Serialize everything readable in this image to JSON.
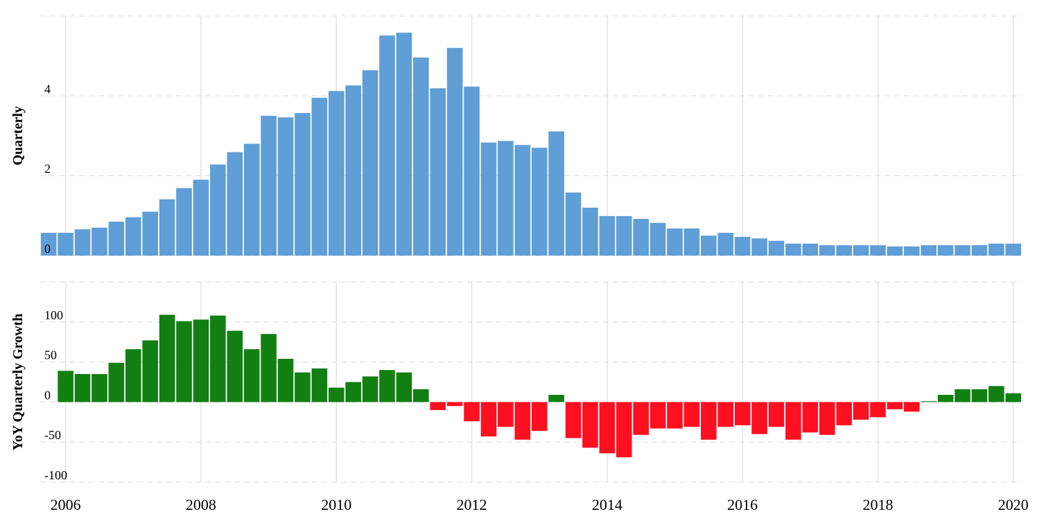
{
  "chart_data": [
    {
      "type": "bar",
      "ylabel": "Quarterly",
      "color": "#5f9ed6",
      "x": [
        2005.75,
        2006,
        2006.25,
        2006.5,
        2006.75,
        2007,
        2007.25,
        2007.5,
        2007.75,
        2008,
        2008.25,
        2008.5,
        2008.75,
        2009,
        2009.25,
        2009.5,
        2009.75,
        2010,
        2010.25,
        2010.5,
        2010.75,
        2011,
        2011.25,
        2011.5,
        2011.75,
        2012,
        2012.25,
        2012.5,
        2012.75,
        2013,
        2013.25,
        2013.5,
        2013.75,
        2014,
        2014.25,
        2014.5,
        2014.75,
        2015,
        2015.25,
        2015.5,
        2015.75,
        2016,
        2016.25,
        2016.5,
        2016.75,
        2017,
        2017.25,
        2017.5,
        2017.75,
        2018,
        2018.25,
        2018.5,
        2018.75,
        2019,
        2019.25,
        2019.5,
        2019.75,
        2020
      ],
      "values": [
        0.57,
        0.57,
        0.66,
        0.7,
        0.85,
        0.96,
        1.1,
        1.41,
        1.69,
        1.9,
        2.28,
        2.59,
        2.8,
        3.5,
        3.46,
        3.57,
        3.95,
        4.12,
        4.26,
        4.64,
        5.51,
        5.58,
        4.96,
        4.19,
        5.2,
        4.23,
        2.83,
        2.87,
        2.77,
        2.7,
        3.11,
        1.58,
        1.2,
        0.99,
        0.99,
        0.92,
        0.82,
        0.68,
        0.68,
        0.5,
        0.57,
        0.47,
        0.43,
        0.37,
        0.3,
        0.3,
        0.26,
        0.26,
        0.26,
        0.26,
        0.23,
        0.23,
        0.26,
        0.26,
        0.26,
        0.26,
        0.3,
        0.3
      ],
      "xlim": [
        2005.625,
        2020.125
      ],
      "ylim": [
        0,
        6
      ],
      "yticks": [
        0,
        2,
        4
      ],
      "grid": true
    },
    {
      "type": "bar",
      "ylabel": "YoY Quarterly Growth",
      "color": "#127f12",
      "negative_color": "#ff1020",
      "x": [
        2005.75,
        2006,
        2006.25,
        2006.5,
        2006.75,
        2007,
        2007.25,
        2007.5,
        2007.75,
        2008,
        2008.25,
        2008.5,
        2008.75,
        2009,
        2009.25,
        2009.5,
        2009.75,
        2010,
        2010.25,
        2010.5,
        2010.75,
        2011,
        2011.25,
        2011.5,
        2011.75,
        2012,
        2012.25,
        2012.5,
        2012.75,
        2013,
        2013.25,
        2013.5,
        2013.75,
        2014,
        2014.25,
        2014.5,
        2014.75,
        2015,
        2015.25,
        2015.5,
        2015.75,
        2016,
        2016.25,
        2016.5,
        2016.75,
        2017,
        2017.25,
        2017.5,
        2017.75,
        2018,
        2018.25,
        2018.5,
        2018.75,
        2019,
        2019.25,
        2019.5,
        2019.75,
        2020
      ],
      "values": [
        null,
        39,
        35,
        35,
        49,
        66,
        77,
        109,
        101,
        103,
        108,
        89,
        66,
        85,
        54,
        37,
        42,
        18,
        25,
        32,
        40,
        37,
        16,
        -10,
        -5,
        -24,
        -43,
        -31,
        -47,
        -36,
        9,
        -45,
        -57,
        -64,
        -69,
        -41,
        -33,
        -33,
        -31,
        -47,
        -31,
        -29,
        -40,
        -31,
        -47,
        -38,
        -41,
        -29,
        -22,
        -19,
        -9,
        -12,
        1,
        9,
        16,
        16,
        20,
        11
      ],
      "xlim": [
        2005.625,
        2020.125
      ],
      "xticks": [
        2006,
        2008,
        2010,
        2012,
        2014,
        2016,
        2018,
        2020
      ],
      "ylim": [
        -100,
        150
      ],
      "yticks": [
        -100,
        -50,
        0,
        50,
        100
      ],
      "grid": true
    }
  ]
}
